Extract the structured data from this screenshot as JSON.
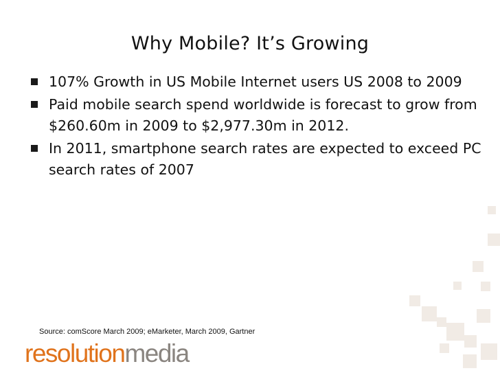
{
  "slide": {
    "title": "Why Mobile? It’s Growing",
    "bullets": [
      "107% Growth in US Mobile Internet users US 2008 to 2009",
      "Paid mobile search spend worldwide is forecast to grow from $260.60m in 2009 to $2,977.30m in 2012.",
      "In 2011, smartphone search rates are expected to exceed PC search rates of 2007"
    ],
    "source": "Source: comScore March 2009; eMarketer, March 2009, Gartner"
  },
  "logo": {
    "part1": "resolution",
    "part2": "media",
    "color_primary": "#e0731c",
    "color_secondary": "#8a8580"
  }
}
